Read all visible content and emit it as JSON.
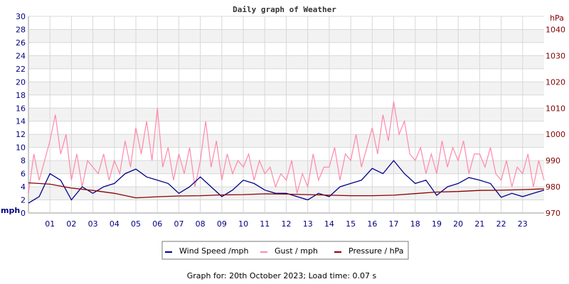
{
  "chart_data": {
    "type": "line",
    "title": "Daily graph of Weather",
    "left_axis": {
      "unit_label": "mph",
      "ylim": [
        0,
        30
      ],
      "ticks": [
        0,
        2,
        4,
        6,
        8,
        10,
        12,
        14,
        16,
        18,
        20,
        22,
        24,
        26,
        28,
        30
      ],
      "color": "#000080"
    },
    "right_axis": {
      "unit_label": "hPa",
      "ylim": [
        970,
        1045
      ],
      "ticks": [
        970,
        980,
        990,
        1000,
        1010,
        1020,
        1030,
        1040
      ],
      "color": "#800000"
    },
    "x_ticks": [
      "01",
      "02",
      "03",
      "04",
      "05",
      "06",
      "07",
      "08",
      "09",
      "10",
      "11",
      "12",
      "13",
      "14",
      "15",
      "16",
      "17",
      "18",
      "19",
      "20",
      "21",
      "22",
      "23"
    ],
    "xlim_hours": [
      0,
      24
    ],
    "grid": true,
    "series": [
      {
        "name": "Wind Speed /mph",
        "axis": "left",
        "color": "#00008b",
        "step_hours": 0.5,
        "values": [
          1.5,
          2.5,
          6,
          5,
          2,
          4,
          3,
          4,
          4.5,
          6,
          6.7,
          5.5,
          5,
          4.5,
          3,
          4,
          5.5,
          4,
          2.5,
          3.5,
          5,
          4.5,
          3.5,
          3,
          3,
          2.5,
          2,
          3,
          2.5,
          4,
          4.5,
          5,
          6.8,
          6,
          8,
          6,
          4.5,
          5,
          2.7,
          4,
          4.5,
          5.4,
          5,
          4.5,
          2.4,
          3,
          2.5,
          3,
          3.5
        ]
      },
      {
        "name": "Gust / mph",
        "axis": "left",
        "color": "#ff88aa",
        "step_hours": 0.25,
        "values": [
          3,
          9,
          5,
          8,
          11,
          15,
          9,
          12,
          5,
          9,
          4,
          8,
          7,
          6,
          9,
          5,
          8,
          6,
          11,
          7,
          13,
          9,
          14,
          8,
          16,
          7,
          10,
          5,
          9,
          6,
          10,
          4,
          8,
          14,
          7,
          11,
          5,
          9,
          6,
          8,
          7,
          9,
          5,
          8,
          6,
          7,
          4,
          6,
          5,
          8,
          3,
          6,
          4,
          9,
          5,
          7,
          7,
          10,
          5,
          9,
          8,
          12,
          7,
          10,
          13,
          9,
          15,
          11,
          17,
          12,
          14,
          9,
          8,
          10,
          6,
          9,
          6,
          11,
          7,
          10,
          8,
          11,
          6,
          9,
          9,
          7,
          10,
          6,
          5,
          8,
          4,
          7,
          6,
          9,
          4,
          8,
          5
        ]
      },
      {
        "name": "Pressure / hPa",
        "axis": "right",
        "color": "#8b0000",
        "step_hours": 1,
        "values": [
          981.5,
          981,
          979.5,
          978.6,
          977.5,
          975.8,
          976.2,
          976.5,
          976.6,
          976.9,
          977,
          977.3,
          977.2,
          977,
          976.8,
          976.6,
          976.6,
          976.8,
          977.4,
          978,
          978.2,
          978.6,
          978.7,
          978.9,
          979.2
        ]
      }
    ]
  },
  "footer": "Graph for: 20th October 2023; Load time: 0.07 s"
}
